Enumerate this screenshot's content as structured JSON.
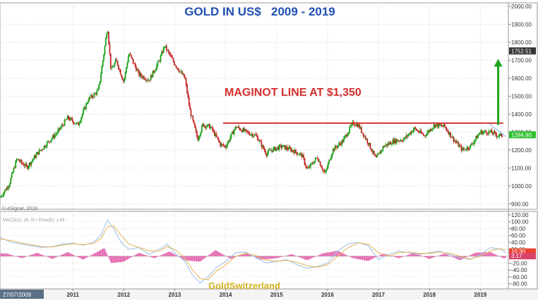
{
  "chart_data": [
    {
      "type": "candlestick",
      "title": "GOLD IN US$   2009 - 2019",
      "ylim": [
        870,
        2020
      ],
      "y_ticks": [
        900,
        1000,
        1100,
        1200,
        1300,
        1400,
        1500,
        1600,
        1700,
        1800,
        1900,
        2000
      ],
      "y_tick_labels": [
        "900.00",
        "1000.00",
        "1100.00",
        "1200.00",
        "1300.00",
        "1400.00",
        "1500.00",
        "1600.00",
        "1700.00",
        "1800.00",
        "1900.00",
        "2000.00"
      ],
      "x_range": [
        2009.57,
        2019.55
      ],
      "x_ticks": [
        2011,
        2012,
        2013,
        2014,
        2015,
        2016,
        2017,
        2018,
        2019
      ],
      "x_tick_labels": [
        "2011",
        "2012",
        "2013",
        "2014",
        "2015",
        "2016",
        "2017",
        "2018",
        "2019"
      ],
      "start_date_label": "27/07/2009",
      "price_series": {
        "x": [
          2009.57,
          2009.75,
          2009.9,
          2010.1,
          2010.3,
          2010.5,
          2010.7,
          2010.9,
          2011.1,
          2011.3,
          2011.5,
          2011.6,
          2011.68,
          2011.75,
          2011.85,
          2012.0,
          2012.1,
          2012.3,
          2012.5,
          2012.7,
          2012.8,
          2013.0,
          2013.2,
          2013.3,
          2013.45,
          2013.55,
          2013.7,
          2013.9,
          2014.0,
          2014.2,
          2014.4,
          2014.6,
          2014.8,
          2014.9,
          2015.1,
          2015.3,
          2015.5,
          2015.6,
          2015.8,
          2015.95,
          2016.1,
          2016.3,
          2016.5,
          2016.6,
          2016.8,
          2016.95,
          2017.1,
          2017.3,
          2017.5,
          2017.7,
          2017.9,
          2018.1,
          2018.3,
          2018.5,
          2018.65,
          2018.8,
          2019.0,
          2019.2,
          2019.35,
          2019.45
        ],
        "close": [
          935,
          1010,
          1150,
          1105,
          1180,
          1240,
          1300,
          1380,
          1340,
          1480,
          1530,
          1720,
          1890,
          1640,
          1700,
          1580,
          1740,
          1620,
          1590,
          1700,
          1780,
          1680,
          1600,
          1420,
          1260,
          1340,
          1330,
          1230,
          1220,
          1330,
          1300,
          1280,
          1180,
          1200,
          1220,
          1200,
          1170,
          1090,
          1160,
          1065,
          1200,
          1250,
          1350,
          1340,
          1240,
          1150,
          1220,
          1250,
          1260,
          1320,
          1280,
          1340,
          1330,
          1250,
          1200,
          1220,
          1300,
          1300,
          1280,
          1285
        ]
      },
      "current_price_label": "1284.90",
      "target_price_label": "1752.51",
      "annotations": {
        "maginot_label": "MAGINOT LINE AT $1,350",
        "maginot_level": 1350,
        "maginot_start_x": 2013.95,
        "maginot_end_x": 2019.45,
        "arrow_from": 1340,
        "arrow_to": 1700,
        "arrow_x": 2019.35
      },
      "copyright": "© eSignal, 2019",
      "colors": {
        "up": "#1aa11a",
        "down": "#c62828",
        "maginot": "#d32f2f",
        "arrow": "#1ea51e",
        "title": "#1f4fb3",
        "price_tag": "#30c030",
        "target_tag": "#333333"
      }
    },
    {
      "type": "line",
      "indicator_label": "MACD(12, 26, 9) • Price(E): 1.49",
      "ylim": [
        -95,
        130
      ],
      "y_ticks": [
        120,
        100,
        80,
        60,
        40,
        20,
        -20,
        -40,
        -60,
        -80
      ],
      "y_tick_labels": [
        "120.00",
        "100.00",
        "80.00",
        "60.00",
        "40.00",
        "20.00",
        "-20.00",
        "-40.00",
        "-60.00",
        "-80.00"
      ],
      "series": [
        {
          "x": [
            2009.57,
            2009.8,
            2010.0,
            2010.2,
            2010.4,
            2010.6,
            2010.8,
            2011.0,
            2011.2,
            2011.4,
            2011.55,
            2011.68,
            2011.8,
            2011.95,
            2012.1,
            2012.3,
            2012.5,
            2012.7,
            2012.85,
            2013.0,
            2013.2,
            2013.35,
            2013.5,
            2013.65,
            2013.8,
            2014.0,
            2014.2,
            2014.4,
            2014.6,
            2014.8,
            2015.0,
            2015.2,
            2015.4,
            2015.6,
            2015.8,
            2016.0,
            2016.2,
            2016.4,
            2016.6,
            2016.8,
            2017.0,
            2017.2,
            2017.4,
            2017.6,
            2017.8,
            2018.0,
            2018.2,
            2018.4,
            2018.6,
            2018.8,
            2019.0,
            2019.2,
            2019.4,
            2019.5
          ],
          "values": [
            55,
            40,
            35,
            30,
            25,
            28,
            35,
            38,
            32,
            40,
            60,
            105,
            80,
            40,
            20,
            25,
            5,
            20,
            35,
            10,
            -15,
            -55,
            -78,
            -60,
            -35,
            -15,
            10,
            12,
            -5,
            -20,
            -15,
            -10,
            -25,
            -35,
            -30,
            -20,
            15,
            35,
            40,
            30,
            -10,
            5,
            15,
            10,
            5,
            10,
            15,
            5,
            -5,
            -10,
            5,
            25,
            20,
            10
          ],
          "style": {
            "color": "#9ec4ea"
          }
        },
        {
          "x": [
            2009.57,
            2009.8,
            2010.0,
            2010.2,
            2010.4,
            2010.6,
            2010.8,
            2011.0,
            2011.2,
            2011.4,
            2011.55,
            2011.68,
            2011.8,
            2011.95,
            2012.1,
            2012.3,
            2012.5,
            2012.7,
            2012.85,
            2013.0,
            2013.2,
            2013.35,
            2013.5,
            2013.65,
            2013.8,
            2014.0,
            2014.2,
            2014.4,
            2014.6,
            2014.8,
            2015.0,
            2015.2,
            2015.4,
            2015.6,
            2015.8,
            2016.0,
            2016.2,
            2016.4,
            2016.6,
            2016.8,
            2017.0,
            2017.2,
            2017.4,
            2017.6,
            2017.8,
            2018.0,
            2018.2,
            2018.4,
            2018.6,
            2018.8,
            2019.0,
            2019.2,
            2019.4,
            2019.5
          ],
          "values": [
            50,
            45,
            38,
            33,
            28,
            27,
            32,
            36,
            34,
            37,
            50,
            85,
            88,
            60,
            35,
            25,
            15,
            15,
            28,
            20,
            -5,
            -40,
            -65,
            -68,
            -45,
            -25,
            0,
            8,
            2,
            -12,
            -15,
            -12,
            -18,
            -28,
            -32,
            -25,
            0,
            25,
            38,
            35,
            10,
            0,
            10,
            12,
            8,
            8,
            12,
            8,
            0,
            -8,
            0,
            15,
            22,
            18
          ],
          "style": {
            "color": "#e8b860"
          }
        }
      ],
      "histogram": {
        "x": [
          2009.7,
          2010.0,
          2010.3,
          2010.6,
          2010.9,
          2011.2,
          2011.5,
          2011.62,
          2011.75,
          2012.0,
          2012.3,
          2012.6,
          2012.9,
          2013.2,
          2013.5,
          2013.8,
          2014.1,
          2014.4,
          2014.7,
          2015.0,
          2015.3,
          2015.6,
          2015.9,
          2016.2,
          2016.5,
          2016.8,
          2017.1,
          2017.4,
          2017.7,
          2018.0,
          2018.3,
          2018.6,
          2018.9,
          2019.2,
          2019.45
        ],
        "values": [
          8,
          -6,
          10,
          -8,
          12,
          -10,
          14,
          24,
          -20,
          -16,
          10,
          -6,
          14,
          -12,
          -16,
          18,
          -8,
          10,
          -10,
          -6,
          6,
          -12,
          8,
          16,
          -6,
          -14,
          8,
          -6,
          10,
          -8,
          8,
          -12,
          10,
          12,
          -6
        ]
      },
      "value_tag_1": "10.30",
      "value_tag_2": "3.17",
      "colors": {
        "histogram": "#e35aa8",
        "tag1": "#e8412e",
        "tag2": "#d9436b"
      }
    }
  ],
  "watermark": "GoldSwitzerland"
}
